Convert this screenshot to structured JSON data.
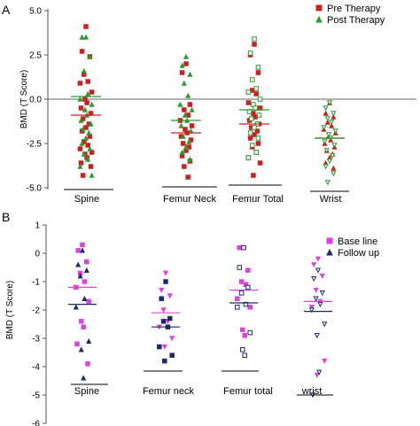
{
  "chart_data": [
    {
      "type": "scatter",
      "panel_label": "A",
      "ylabel": "BMD (T Score)",
      "ylim": [
        -5.0,
        5.0
      ],
      "yticks": [
        5.0,
        2.5,
        0.0,
        -2.5,
        -5.0
      ],
      "ytick_labels": [
        "5.0",
        "2.5",
        "0.0",
        "-2.5",
        "-5.0"
      ],
      "reference_line": 0.0,
      "grid": false,
      "legend_position": "top-right",
      "groups": [
        "Spine",
        "Femur Neck",
        "Femur Total",
        "Wrist"
      ],
      "series": [
        {
          "name": "Pre Therapy",
          "marker": "square",
          "color": "#cc2020",
          "points": [
            {
              "group": 0,
              "values": [
                4.1,
                2.7,
                2.4,
                1.4,
                1.0,
                0.9,
                0.4,
                0.0,
                -0.2,
                -0.5,
                -0.8,
                -1.1,
                -1.4,
                -1.6,
                -1.8,
                -2.1,
                -2.4,
                -2.6,
                -2.8,
                -3.0,
                -3.1,
                -3.3,
                -3.6,
                -3.8,
                -4.3
              ],
              "mean": -0.9
            },
            {
              "group": 1,
              "values": [
                2.0,
                1.5,
                -0.3,
                -0.6,
                -0.9,
                -1.2,
                -1.5,
                -1.7,
                -1.9,
                -2.1,
                -2.3,
                -2.5,
                -2.7,
                -2.9,
                -3.2,
                -3.5,
                -3.8,
                -4.4
              ],
              "mean": -1.9
            },
            {
              "group": 2,
              "values": [
                3.1,
                2.5,
                1.5,
                0.5,
                0.3,
                -0.2,
                -0.5,
                -0.8,
                -1.0,
                -1.2,
                -1.4,
                -1.6,
                -1.8,
                -2.0,
                -2.2,
                -2.5,
                -2.7,
                -3.0,
                -3.3,
                -3.6,
                -4.3
              ],
              "mean": -1.4
            },
            {
              "group": 3,
              "values": [
                -0.2,
                -0.8,
                -1.0,
                -1.3,
                -1.5,
                -1.7,
                -1.9,
                -2.1,
                -2.3,
                -2.5,
                -2.7,
                -2.9,
                -3.1,
                -3.3,
                -3.6,
                -3.9
              ],
              "mean": -2.2
            }
          ]
        },
        {
          "name": "Post Therapy",
          "marker": "triangle",
          "color": "#2a9a2a",
          "points": [
            {
              "group": 0,
              "values": [
                3.5,
                3.5,
                2.4,
                1.6,
                0.3,
                0.0,
                -0.3,
                -0.6,
                -0.9,
                -1.2,
                -1.4,
                -1.7,
                -1.9,
                -2.2,
                -2.5,
                -2.8,
                -3.1,
                -3.4,
                -3.8,
                -4.3
              ],
              "mean": 0.15
            },
            {
              "group": 1,
              "values": [
                2.4,
                1.9,
                1.4,
                0.9,
                0.2,
                -0.3,
                -0.6,
                -0.9,
                -1.2,
                -1.5,
                -1.8,
                -2.1,
                -2.4,
                -2.7,
                -3.0,
                -3.4
              ],
              "mean": -1.2
            },
            {
              "group": 2,
              "values": [
                3.4,
                2.6,
                1.8,
                1.1,
                0.6,
                0.4,
                0.0,
                -0.3,
                -0.5,
                -0.7,
                -0.9,
                -1.1,
                -1.4,
                -1.6,
                -1.9,
                -2.2,
                -2.6,
                -3.0,
                -3.3
              ],
              "mean": -0.6
            },
            {
              "group": 3,
              "values": [
                -0.2,
                -0.5,
                -0.8,
                -1.1,
                -1.3,
                -1.6,
                -1.8,
                -2.0,
                -2.2,
                -2.4,
                -2.6,
                -2.9,
                -3.2,
                -3.5,
                -3.8,
                -4.2,
                -4.7
              ],
              "mean": -2.2
            }
          ]
        }
      ]
    },
    {
      "type": "scatter",
      "panel_label": "B",
      "ylabel": "BMD (T Score)",
      "ylim": [
        -6,
        1
      ],
      "yticks": [
        1,
        0,
        -1,
        -2,
        -3,
        -4,
        -5,
        -6
      ],
      "ytick_labels": [
        "1",
        "0",
        "-1",
        "-2",
        "-3",
        "-4",
        "-5",
        "-6"
      ],
      "grid": false,
      "legend_position": "top-right",
      "groups": [
        "Spine",
        "Femur neck",
        "Femur total",
        "wrist"
      ],
      "series": [
        {
          "name": "Base line",
          "marker": "square",
          "color": "#e040e0",
          "points": [
            {
              "group": 0,
              "values": [
                0.3,
                0.1,
                -0.3,
                -0.7,
                -1.0,
                -1.2,
                -1.7,
                -2.4,
                -2.6,
                -3.2,
                -3.9
              ],
              "mean": -1.2
            },
            {
              "group": 1,
              "values": [
                -0.7,
                -1.3,
                -1.5,
                -2.0,
                -2.4,
                -2.6,
                -3.0,
                -3.3
              ],
              "mean": -2.1
            },
            {
              "group": 2,
              "values": [
                0.2,
                0.2,
                -0.6,
                -1.0,
                -1.1,
                -1.6,
                -1.9,
                -2.7,
                -2.9
              ],
              "mean": -1.3
            },
            {
              "group": 3,
              "values": [
                -0.2,
                -0.4,
                -0.8,
                -1.3,
                -1.7,
                -1.9,
                -3.8,
                -4.3
              ],
              "mean": -1.7
            }
          ]
        },
        {
          "name": "Follow up",
          "marker": "triangle",
          "color": "#1a2a6a",
          "points": [
            {
              "group": 0,
              "values": [
                0.1,
                -0.4,
                -0.6,
                -0.8,
                -1.6,
                -1.9,
                -3.1,
                -3.4,
                -4.4
              ],
              "mean": -1.8
            },
            {
              "group": 1,
              "values": [
                -1.0,
                -1.6,
                -2.3,
                -2.4,
                -2.6,
                -3.3,
                -3.6,
                -3.8
              ],
              "mean": -2.6
            },
            {
              "group": 2,
              "values": [
                0.2,
                -0.5,
                -1.2,
                -1.4,
                -1.8,
                -1.9,
                -2.8,
                -3.4,
                -3.6
              ],
              "mean": -1.75
            },
            {
              "group": 3,
              "values": [
                -0.6,
                -0.9,
                -1.4,
                -1.6,
                -1.8,
                -2.0,
                -2.5,
                -2.9,
                -4.2,
                -5.0
              ],
              "mean": -2.05
            }
          ]
        }
      ]
    }
  ]
}
